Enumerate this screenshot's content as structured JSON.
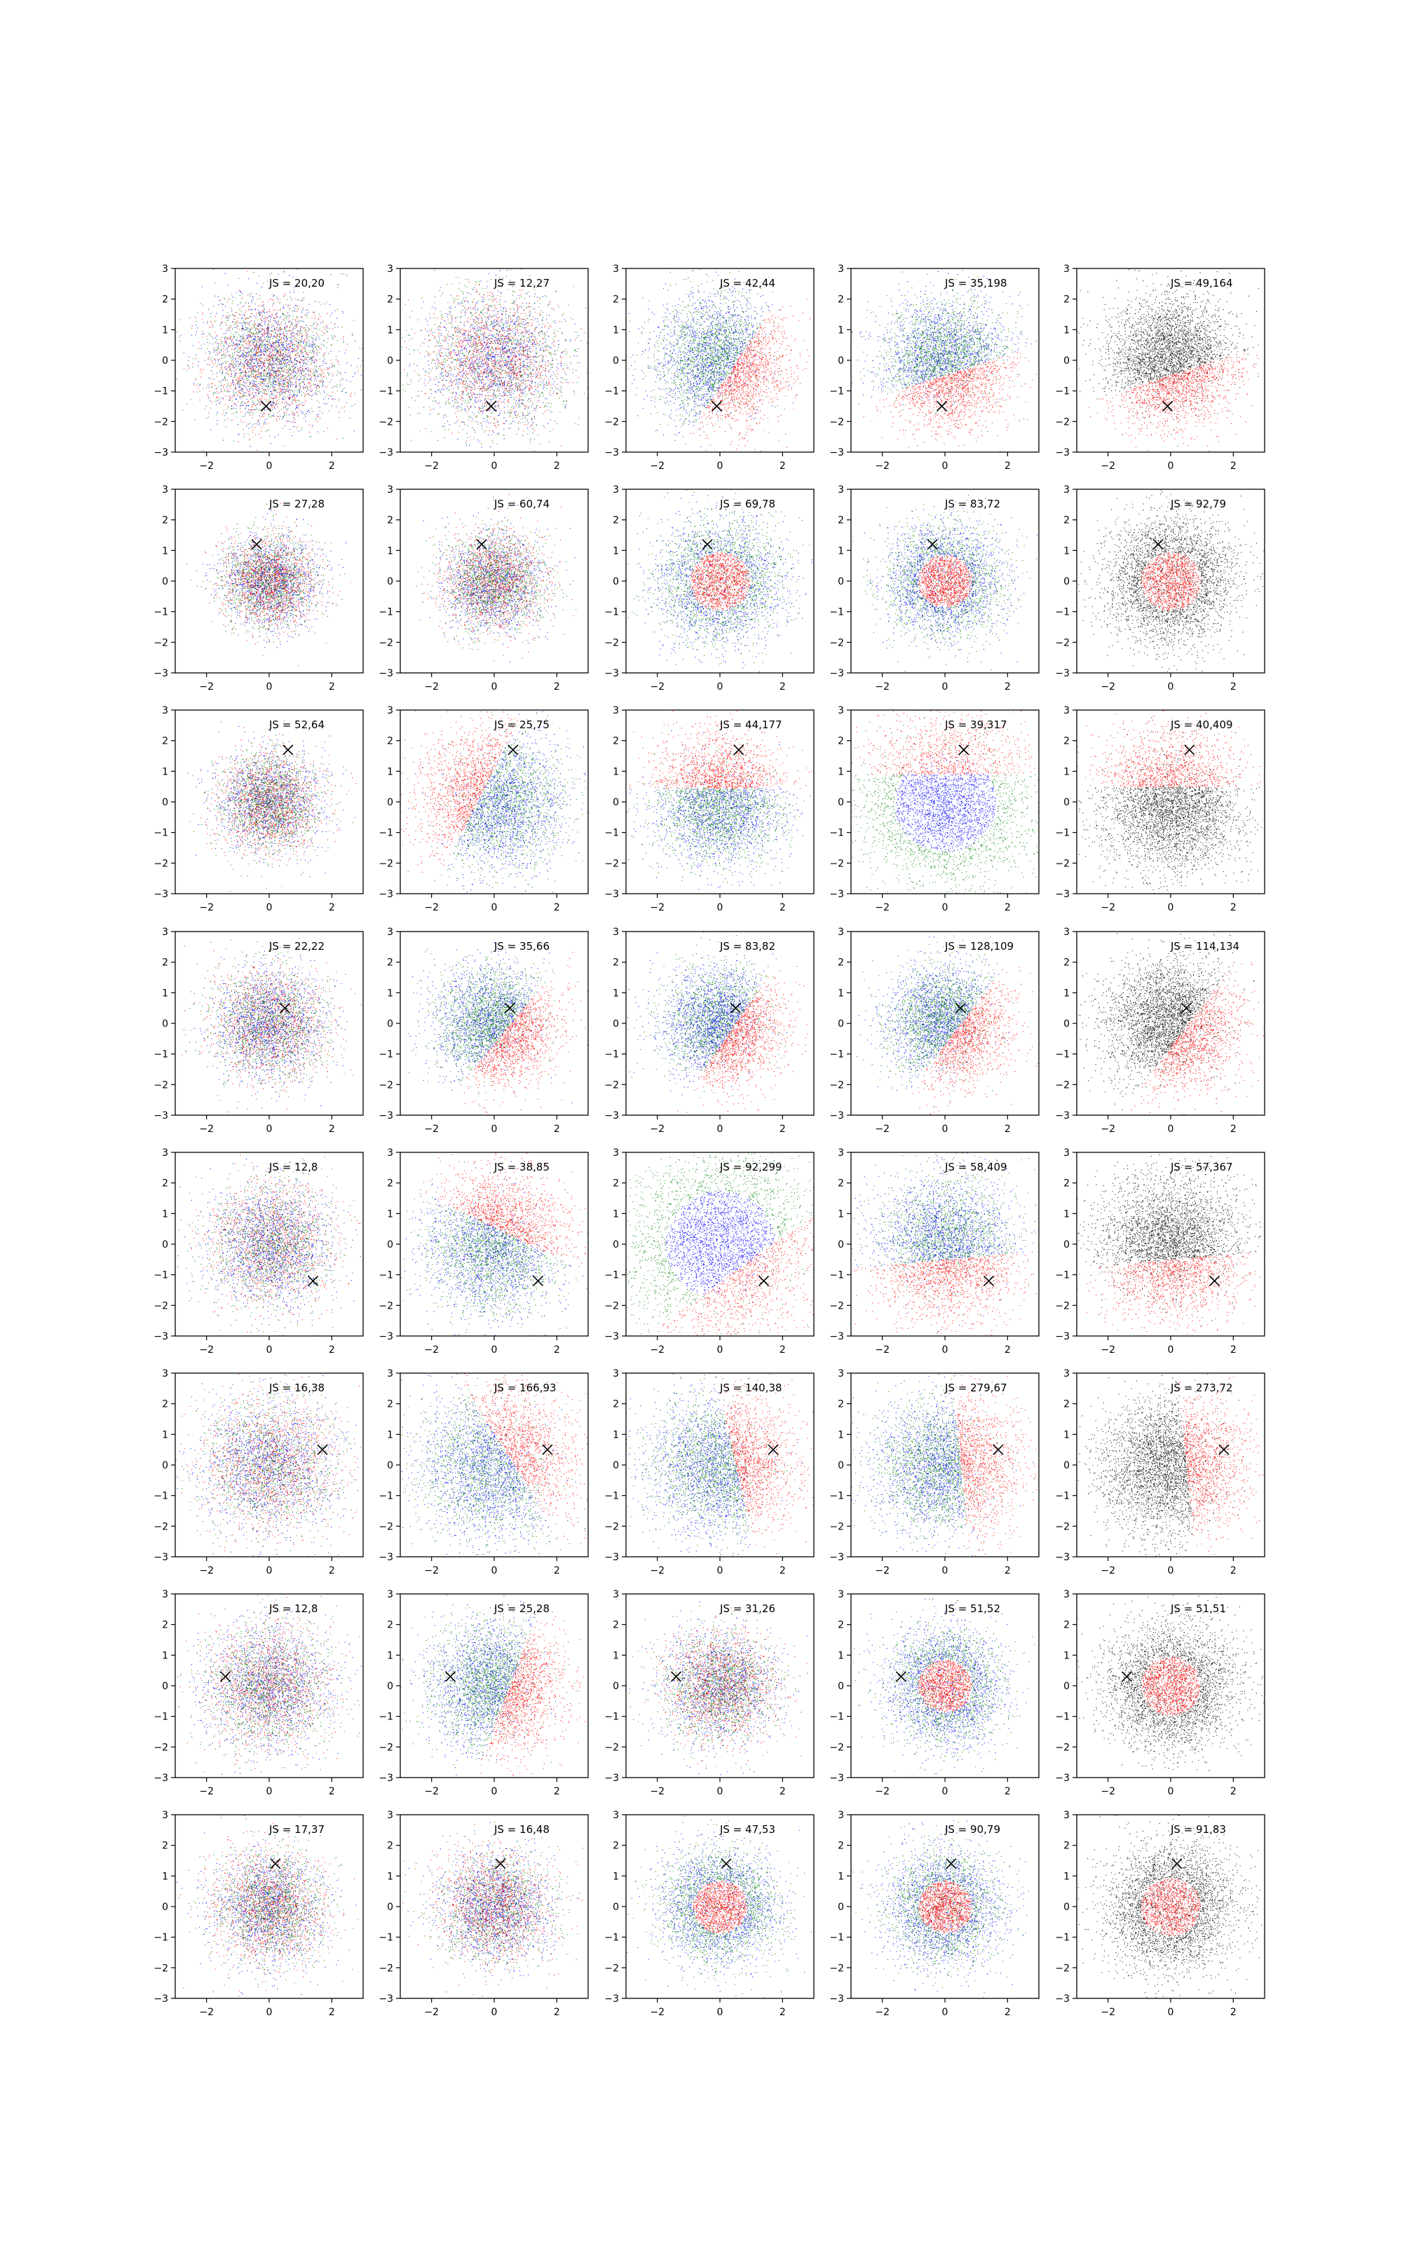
{
  "chart_data": {
    "type": "scatter",
    "layout": {
      "rows": 8,
      "cols": 5
    },
    "axes": {
      "xlim": [
        -3,
        3
      ],
      "ylim": [
        -3,
        3
      ],
      "xticks": [
        -2,
        0,
        2
      ],
      "yticks": [
        -3,
        -2,
        -1,
        0,
        1,
        2,
        3
      ],
      "grid": false
    },
    "colors": {
      "series_a": "#0000ff",
      "series_b": "#008000",
      "series_c": "#ff0000",
      "neutral": "#000000",
      "marker": "#000000"
    },
    "marker_symbol": "×",
    "points_per_panel": 4000,
    "label_prefix": "JS = ",
    "rows": [
      {
        "marker": [
          -0.1,
          -1.5
        ],
        "labels": [
          "20,20",
          "12,27",
          "42,44",
          "35,198",
          "49,164"
        ],
        "structure": [
          {
            "type": "mixed",
            "spread": 1.0
          },
          {
            "type": "mixed",
            "spread": 1.0,
            "green_spread": 1.3
          },
          {
            "type": "split",
            "dir": [
              0.55,
              -0.35
            ],
            "spread": 1.0
          },
          {
            "type": "split",
            "dir": [
              0.3,
              -0.9
            ],
            "spread": 1.0
          },
          {
            "type": "split-black",
            "dir": [
              0.3,
              -0.9
            ],
            "spread": 1.0
          }
        ]
      },
      {
        "marker": [
          -0.4,
          1.2
        ],
        "labels": [
          "27,28",
          "60,74",
          "69,78",
          "83,72",
          "92,79"
        ],
        "structure": [
          {
            "type": "mixed",
            "spread": 0.75
          },
          {
            "type": "mixed",
            "spread": 0.8
          },
          {
            "type": "core",
            "spread": 1.0
          },
          {
            "type": "core",
            "spread": 0.9
          },
          {
            "type": "core-black",
            "spread": 1.0
          }
        ]
      },
      {
        "marker": [
          0.6,
          1.7
        ],
        "labels": [
          "52,64",
          "25,75",
          "44,177",
          "39,317",
          "40,409"
        ],
        "structure": [
          {
            "type": "mixed",
            "spread": 0.8
          },
          {
            "type": "split",
            "dir": [
              -0.6,
              0.3
            ],
            "spread": 1.1
          },
          {
            "type": "split",
            "dir": [
              0,
              1
            ],
            "spread": 1.0
          },
          {
            "type": "ring",
            "dir": [
              0,
              1
            ],
            "spread": 1.3
          },
          {
            "type": "split-black",
            "dir": [
              0,
              1
            ],
            "spread": 1.1
          }
        ]
      },
      {
        "marker": [
          0.5,
          0.5
        ],
        "labels": [
          "22,22",
          "35,66",
          "83,82",
          "128,109",
          "114,134"
        ],
        "structure": [
          {
            "type": "mixed",
            "spread": 0.9
          },
          {
            "type": "split",
            "dir": [
              0.5,
              -0.4
            ],
            "spread": 0.9
          },
          {
            "type": "split",
            "dir": [
              0.6,
              -0.4
            ],
            "spread": 0.9
          },
          {
            "type": "split",
            "dir": [
              0.8,
              -0.6
            ],
            "spread": 0.9
          },
          {
            "type": "split-black",
            "dir": [
              0.8,
              -0.6
            ],
            "spread": 1.0
          }
        ]
      },
      {
        "marker": [
          1.4,
          -1.2
        ],
        "labels": [
          "12,8",
          "38,85",
          "92,299",
          "58,409",
          "57,367"
        ],
        "structure": [
          {
            "type": "mixed",
            "spread": 1.0
          },
          {
            "type": "split",
            "dir": [
              0.3,
              0.6
            ],
            "spread": 1.1
          },
          {
            "type": "ring",
            "dir": [
              0.6,
              -0.8
            ],
            "spread": 1.4
          },
          {
            "type": "split",
            "dir": [
              0.1,
              -1.0
            ],
            "spread": 1.1
          },
          {
            "type": "split-black",
            "dir": [
              0.1,
              -1.0
            ],
            "spread": 1.1
          }
        ]
      },
      {
        "marker": [
          1.7,
          0.5
        ],
        "labels": [
          "16,38",
          "166,93",
          "140,38",
          "279,67",
          "273,72"
        ],
        "structure": [
          {
            "type": "mixed",
            "spread": 1.1
          },
          {
            "type": "split",
            "dir": [
              0.8,
              0.5
            ],
            "spread": 1.2
          },
          {
            "type": "split",
            "dir": [
              0.9,
              0.2
            ],
            "spread": 1.1
          },
          {
            "type": "split",
            "dir": [
              1.0,
              0.1
            ],
            "spread": 1.1
          },
          {
            "type": "split-black",
            "dir": [
              1.0,
              0.1
            ],
            "spread": 1.1
          }
        ]
      },
      {
        "marker": [
          -1.4,
          0.3
        ],
        "labels": [
          "12,8",
          "25,28",
          "31,26",
          "51,52",
          "51,51"
        ],
        "structure": [
          {
            "type": "mixed",
            "spread": 1.0
          },
          {
            "type": "split",
            "dir": [
              0.8,
              -0.3
            ],
            "spread": 1.0
          },
          {
            "type": "mixed",
            "spread": 0.9
          },
          {
            "type": "core",
            "spread": 0.9
          },
          {
            "type": "core-black",
            "spread": 1.0
          }
        ]
      },
      {
        "marker": [
          0.2,
          1.4
        ],
        "labels": [
          "17,37",
          "16,48",
          "47,53",
          "90,79",
          "91,83"
        ],
        "structure": [
          {
            "type": "mixed",
            "spread": 0.9
          },
          {
            "type": "mixed",
            "spread": 0.9
          },
          {
            "type": "core",
            "spread": 0.9
          },
          {
            "type": "core",
            "spread": 0.9
          },
          {
            "type": "core-black",
            "spread": 1.0
          }
        ]
      }
    ]
  }
}
